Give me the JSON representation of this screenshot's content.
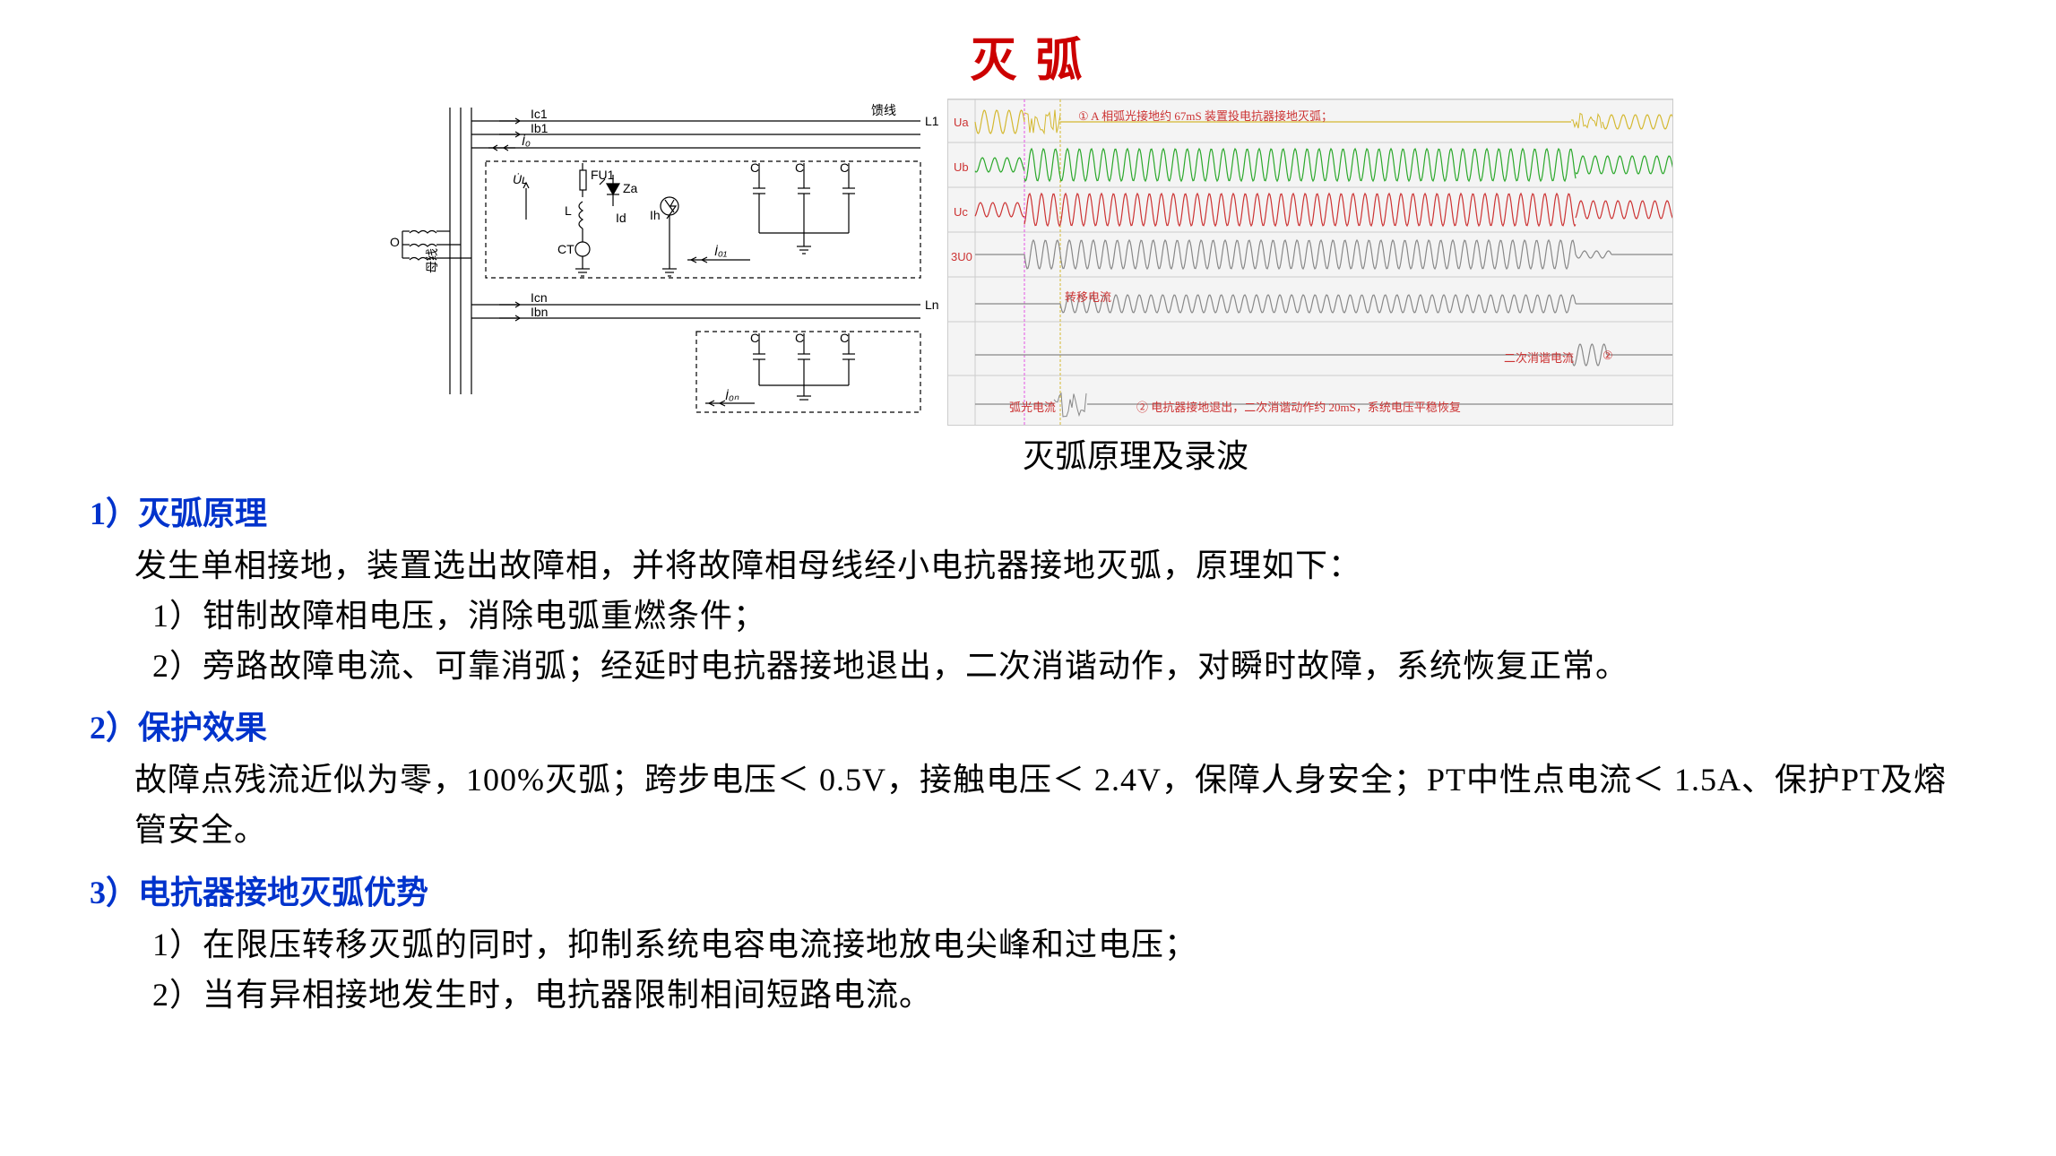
{
  "title": "灭 弧",
  "title_color": "#cc0000",
  "diagram": {
    "label_feeder": "馈线",
    "label_L1": "L1",
    "label_Ln": "Ln",
    "label_bus": "母线",
    "label_Ic1": "Ic1",
    "label_Ib1": "Ib1",
    "label_I0": "İ₀",
    "label_I01": "İ₀₁",
    "label_I0n": "İ₀ₙ",
    "label_Icn": "Icn",
    "label_Ibn": "Ibn",
    "label_UL": "U̇ʟ",
    "label_FU1": "FU1",
    "label_Za": "Za",
    "label_L": "L",
    "label_Id": "Id",
    "label_Ih": "Ih",
    "label_CT": "CT",
    "label_C": "C",
    "label_O": "O",
    "line_color": "#000000"
  },
  "waveform": {
    "bg_color": "#f4f4f4",
    "grid_color": "#e0e0e0",
    "label_Ua": "Ua",
    "label_Ub": "Ub",
    "label_Uc": "Uc",
    "label_3U0": "3U0",
    "color_Ua": "#d4b830",
    "color_Ub": "#2ba82b",
    "color_Uc": "#cc3333",
    "color_3U0": "#888888",
    "color_transfer": "#888888",
    "color_harmonic": "#888888",
    "color_arc": "#888888",
    "vline1_color": "#e555e5",
    "vline2_color": "#d4b830",
    "note1": "① A 相弧光接地约 67mS 装置投电抗器接地灭弧；",
    "note1_color": "#cc3333",
    "label_transfer": "转移电流",
    "label_transfer_color": "#cc3333",
    "label_harmonic": "二次消谐电流",
    "label_harmonic_color": "#cc3333",
    "label_circ2": "②",
    "label_arc": "弧光电流",
    "label_arc_color": "#cc3333",
    "note2": "② 电抗器接地退出，二次消谐动作约 20mS，系统电压平稳恢复",
    "note2_color": "#cc3333"
  },
  "caption": "灭弧原理及录波",
  "section1": {
    "head": "1）灭弧原理",
    "head_color": "#0033cc",
    "p1": "发生单相接地，装置选出故障相，并将故障相母线经小电抗器接地灭弧，原理如下：",
    "i1": "1）钳制故障相电压，消除电弧重燃条件；",
    "i2": "2）旁路故障电流、可靠消弧；经延时电抗器接地退出，二次消谐动作，对瞬时故障，系统恢复正常。"
  },
  "section2": {
    "head": "2）保护效果",
    "head_color": "#0033cc",
    "p1": "故障点残流近似为零，100%灭弧；跨步电压＜ 0.5V，接触电压＜ 2.4V，保障人身安全；PT中性点电流＜ 1.5A、保护PT及熔管安全。"
  },
  "section3": {
    "head": "3）电抗器接地灭弧优势",
    "head_color": "#0033cc",
    "i1": "1）在限压转移灭弧的同时，抑制系统电容电流接地放电尖峰和过电压；",
    "i2": "2）当有异相接地发生时，电抗器限制相间短路电流。"
  }
}
